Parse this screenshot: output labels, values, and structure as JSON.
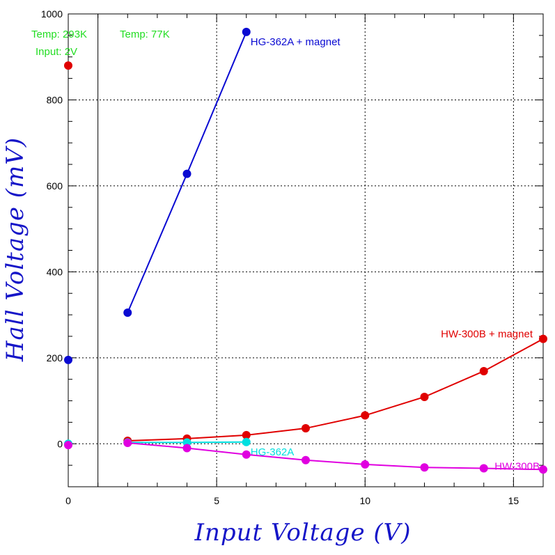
{
  "chart_data": {
    "type": "line",
    "xlabel": "Input Voltage (V)",
    "ylabel": "Hall Voltage (mV)",
    "xlim": [
      0,
      16
    ],
    "ylim": [
      -100,
      1000
    ],
    "x_ticks": [
      0,
      5,
      10,
      15
    ],
    "y_ticks": [
      0,
      200,
      400,
      600,
      800,
      1000
    ],
    "grid": "dotted",
    "reference_line_x": 1,
    "annotations": [
      "Temp: 293K",
      "Input: 2V",
      "Temp: 77K"
    ],
    "series": [
      {
        "name": "HG-362A + magnet",
        "color": "#0a0ad2",
        "x": [
          2,
          4,
          6
        ],
        "y": [
          305,
          628,
          958
        ],
        "ref_point": [
          0,
          195
        ]
      },
      {
        "name": "HW-300B + magnet",
        "color": "#e00000",
        "x": [
          2,
          4,
          6,
          8,
          10,
          12,
          14,
          16
        ],
        "y": [
          7,
          12,
          20,
          36,
          66,
          109,
          169,
          244
        ],
        "ref_point": [
          0,
          880
        ]
      },
      {
        "name": "HG-362A",
        "color": "#00e0e0",
        "x": [
          2,
          4,
          6
        ],
        "y": [
          3,
          3,
          4
        ],
        "ref_point": [
          0,
          0
        ]
      },
      {
        "name": "HW-300B",
        "color": "#e000e0",
        "x": [
          2,
          4,
          6,
          8,
          10,
          12,
          14,
          16
        ],
        "y": [
          2,
          -10,
          -25,
          -38,
          -48,
          -55,
          -57,
          -60
        ],
        "ref_point": [
          0,
          -3
        ]
      }
    ]
  }
}
